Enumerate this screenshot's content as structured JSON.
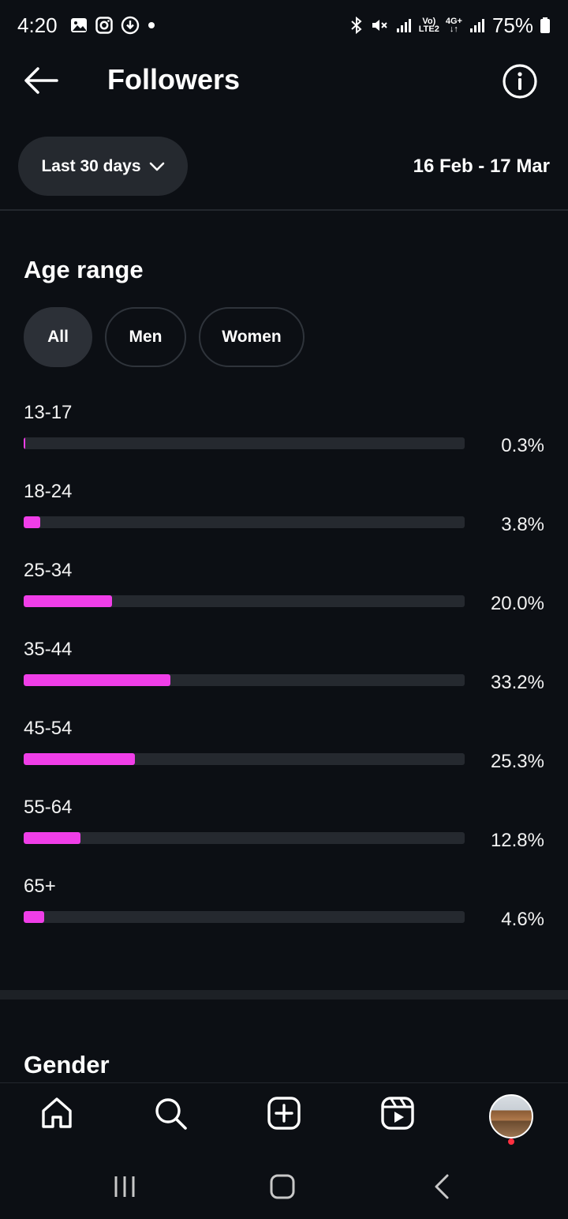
{
  "status_bar": {
    "time": "4:20",
    "left_icons": [
      "gallery-icon",
      "instagram-icon",
      "download-icon",
      "dot-icon"
    ],
    "right_icons": [
      "bluetooth-icon",
      "mute-icon",
      "signal-icon",
      "signal-icon"
    ],
    "volte_line1": "Vo)",
    "volte_line2": "LTE2",
    "net_line1": "4G+",
    "net_line2": "↓↑",
    "battery": "75%"
  },
  "header": {
    "title": "Followers",
    "back_icon": "back-arrow-icon",
    "info_icon": "info-icon"
  },
  "date_filter": {
    "selected": "Last 30 days",
    "range": "16 Feb - 17 Mar"
  },
  "age_section": {
    "title": "Age range",
    "filters": [
      {
        "label": "All",
        "active": true
      },
      {
        "label": "Men",
        "active": false
      },
      {
        "label": "Women",
        "active": false
      }
    ],
    "bar_color": "#f03ee8",
    "track_color": "#25292f",
    "bars": [
      {
        "label": "13-17",
        "value": 0.3,
        "pct": "0.3%"
      },
      {
        "label": "18-24",
        "value": 3.8,
        "pct": "3.8%"
      },
      {
        "label": "25-34",
        "value": 20.0,
        "pct": "20.0%"
      },
      {
        "label": "35-44",
        "value": 33.2,
        "pct": "33.2%"
      },
      {
        "label": "45-54",
        "value": 25.3,
        "pct": "25.3%"
      },
      {
        "label": "55-64",
        "value": 12.8,
        "pct": "12.8%"
      },
      {
        "label": "65+",
        "value": 4.6,
        "pct": "4.6%"
      }
    ]
  },
  "gender_section": {
    "title": "Gender"
  },
  "bottom_nav": {
    "items": [
      "home-icon",
      "search-icon",
      "create-icon",
      "reels-icon",
      "profile-avatar"
    ]
  },
  "system_nav": {
    "items": [
      "recents-icon",
      "home-button-icon",
      "back-icon"
    ]
  }
}
